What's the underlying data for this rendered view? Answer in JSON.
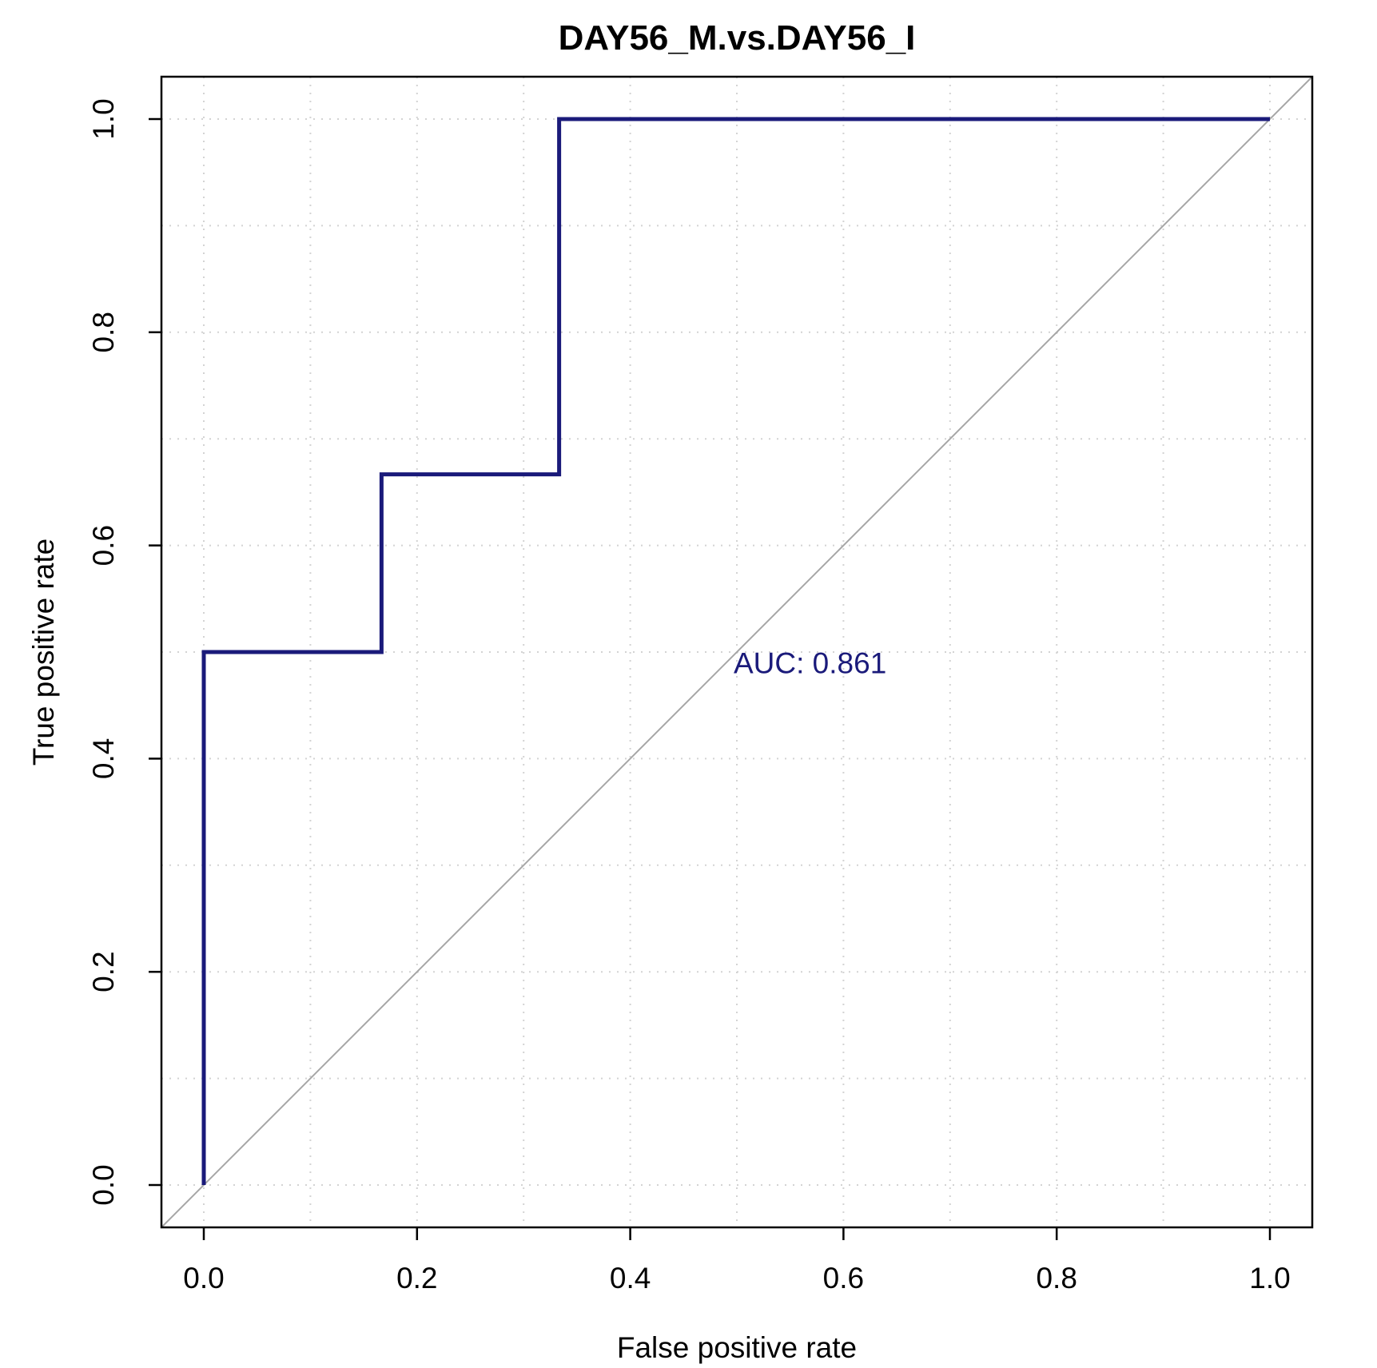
{
  "colors": {
    "roc_line": "#1a1a7a",
    "diagonal": "#a6a6a6",
    "grid": "#d3d3d3",
    "annotation": "#1a1a7a"
  },
  "chart_data": {
    "type": "line",
    "title": "DAY56_M.vs.DAY56_I",
    "xlabel": "False positive rate",
    "ylabel": "True positive rate",
    "xlim": [
      0,
      1
    ],
    "ylim": [
      0,
      1
    ],
    "x_ticks": [
      "0.0",
      "0.2",
      "0.4",
      "0.6",
      "0.8",
      "1.0"
    ],
    "y_ticks": [
      "0.0",
      "0.2",
      "0.4",
      "0.6",
      "0.8",
      "1.0"
    ],
    "grid": true,
    "grid_style": "dotted",
    "series": [
      {
        "x": [
          0.0,
          0.0,
          0.1667,
          0.1667,
          0.3333,
          0.3333,
          1.0
        ],
        "y": [
          0.0,
          0.5,
          0.5,
          0.6667,
          0.6667,
          1.0,
          1.0
        ]
      }
    ],
    "reference_line": {
      "x": [
        0,
        1
      ],
      "y": [
        0,
        1
      ]
    },
    "annotation": {
      "text": "AUC: 0.861",
      "x": 0.5,
      "y": 0.48
    }
  }
}
